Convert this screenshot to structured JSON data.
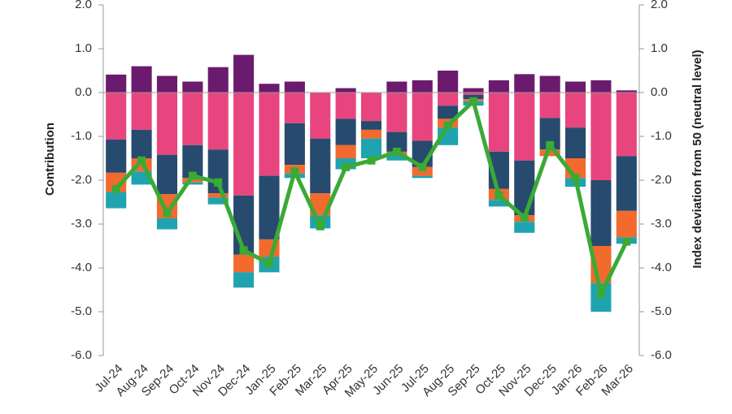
{
  "chart_data": {
    "type": "bar",
    "y_label": "Contribution",
    "y2_label": "Index deviation from 50 (neutral level)",
    "categories": [
      "Jul-24",
      "Aug-24",
      "Sep-24",
      "Oct-24",
      "Nov-24",
      "Dec-24",
      "Jan-25",
      "Feb-25",
      "Mar-25",
      "Apr-25",
      "May-25",
      "Jun-25",
      "Jul-25",
      "Aug-25",
      "Sep-25",
      "Oct-25",
      "Nov-25",
      "Dec-25",
      "Jan-26",
      "Feb-26",
      "Mar-26"
    ],
    "series": [
      {
        "color": "#6a1b6e",
        "values": [
          0.41,
          0.6,
          0.38,
          0.25,
          0.58,
          0.86,
          0.2,
          0.25,
          0.0,
          0.1,
          0.0,
          0.25,
          0.28,
          0.5,
          0.1,
          0.28,
          0.42,
          0.38,
          0.25,
          0.28,
          0.05
        ]
      },
      {
        "color": "#e8457f",
        "values": [
          -1.07,
          -0.85,
          -1.42,
          -1.2,
          -1.3,
          -2.35,
          -1.9,
          -0.7,
          -1.05,
          -0.6,
          -0.65,
          -0.9,
          -1.1,
          -0.3,
          -0.05,
          -1.35,
          -1.55,
          -0.58,
          -0.8,
          -2.0,
          -1.45
        ]
      },
      {
        "color": "#264b6e",
        "values": [
          -0.76,
          -0.65,
          -0.9,
          -0.75,
          -1.0,
          -1.35,
          -1.45,
          -0.95,
          -1.25,
          -0.6,
          -0.2,
          -0.45,
          -0.6,
          -0.3,
          -0.1,
          -0.85,
          -1.25,
          -0.72,
          -0.7,
          -1.5,
          -1.25
        ]
      },
      {
        "color": "#f26a2e",
        "values": [
          -0.44,
          -0.3,
          -0.55,
          -0.1,
          -0.1,
          -0.4,
          -0.4,
          -0.2,
          -0.5,
          -0.3,
          -0.2,
          -0.05,
          -0.2,
          -0.2,
          -0.05,
          -0.25,
          -0.15,
          -0.15,
          -0.45,
          -0.85,
          -0.6
        ]
      },
      {
        "color": "#1fa3b0",
        "values": [
          -0.37,
          -0.3,
          -0.25,
          -0.05,
          -0.15,
          -0.35,
          -0.35,
          -0.1,
          -0.3,
          -0.25,
          -0.45,
          -0.15,
          -0.05,
          -0.4,
          -0.1,
          -0.15,
          -0.25,
          0.0,
          -0.2,
          -0.65,
          -0.15
        ]
      },
      {
        "type": "line",
        "axis": "y2",
        "color": "#3aaa35",
        "values": [
          -2.2,
          -1.55,
          -2.75,
          -1.9,
          -2.05,
          -3.6,
          -3.9,
          -1.8,
          -3.05,
          -1.7,
          -1.55,
          -1.35,
          -1.7,
          -0.75,
          -0.2,
          -2.35,
          -2.85,
          -1.2,
          -1.95,
          -4.6,
          -3.4
        ]
      }
    ],
    "ylim": [
      -6,
      2
    ],
    "yticks": [
      {
        "value": 2,
        "label": "2.0"
      },
      {
        "value": 1,
        "label": "1.0"
      },
      {
        "value": 0,
        "label": "0.0"
      },
      {
        "value": -1,
        "label": "-1.0"
      },
      {
        "value": -2,
        "label": "-2.0"
      },
      {
        "value": -3,
        "label": "-3.0"
      },
      {
        "value": -4,
        "label": "-4.0"
      },
      {
        "value": -5,
        "label": "-5.0"
      },
      {
        "value": -6,
        "label": "-6.0"
      }
    ],
    "y2lim": [
      -6,
      2
    ],
    "y2ticks": [
      {
        "value": 2,
        "label": "2.0"
      },
      {
        "value": 1,
        "label": "1.0"
      },
      {
        "value": 0,
        "label": "0.0"
      },
      {
        "value": -1,
        "label": "-1.0"
      },
      {
        "value": -2,
        "label": "-2.0"
      },
      {
        "value": -3,
        "label": "-3.0"
      },
      {
        "value": -4,
        "label": "-4.0"
      },
      {
        "value": -5,
        "label": "-5.0"
      },
      {
        "value": -6,
        "label": "-6.0"
      }
    ]
  }
}
